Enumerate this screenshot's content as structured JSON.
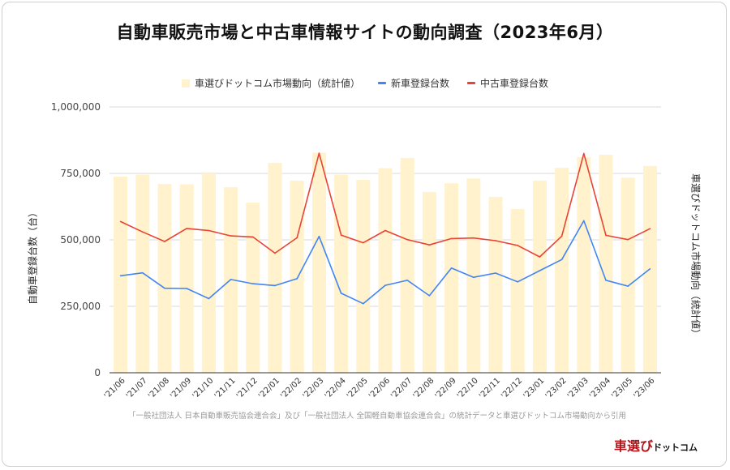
{
  "chart_data": {
    "type": "bar+line",
    "title": "自動車販売市場と中古車情報サイトの動向調査（2023年6月）",
    "ylabel": "自動車登録台数（台）",
    "y2label": "車選びドットコム市場動向（統計値）",
    "ylim": [
      0,
      1000000
    ],
    "yticks": [
      "0",
      "250,000",
      "500,000",
      "750,000",
      "1,000,000"
    ],
    "grid": true,
    "legend_position": "top",
    "categories": [
      "'21/06",
      "'21/07",
      "'21/08",
      "'21/09",
      "'21/10",
      "'21/11",
      "'21/12",
      "'22/01",
      "'22/02",
      "'22/03",
      "'22/04",
      "'22/05",
      "'22/06",
      "'22/07",
      "'22/08",
      "'22/09",
      "'22/10",
      "'22/11",
      "'22/12",
      "'23/01",
      "'23/02",
      "'23/03",
      "'23/04",
      "'23/05",
      "'23/06"
    ],
    "series": [
      {
        "name": "車選びドットコム市場動向（統計値）",
        "type": "bar",
        "axis": "right",
        "color": "#fff2cc",
        "values": [
          738000,
          745000,
          710000,
          709000,
          750000,
          698000,
          640000,
          790000,
          723000,
          828000,
          745000,
          726000,
          770000,
          808000,
          680000,
          713000,
          731000,
          662000,
          616000,
          723000,
          771000,
          811000,
          820000,
          734000,
          778000
        ]
      },
      {
        "name": "新車登録台数",
        "type": "line",
        "color": "#4285f4",
        "values": [
          365000,
          376000,
          318000,
          317000,
          279000,
          351000,
          335000,
          328000,
          354000,
          513000,
          299000,
          260000,
          329000,
          348000,
          290000,
          394000,
          359000,
          375000,
          342000,
          384000,
          426000,
          572000,
          348000,
          326000,
          391000
        ]
      },
      {
        "name": "中古車登録台数",
        "type": "line",
        "color": "#ea4335",
        "values": [
          569000,
          530000,
          494000,
          543000,
          535000,
          515000,
          511000,
          450000,
          508000,
          826000,
          518000,
          489000,
          535000,
          501000,
          481000,
          505000,
          507000,
          497000,
          479000,
          436000,
          514000,
          825000,
          517000,
          501000,
          542000
        ]
      }
    ]
  },
  "source_note": "「一般社団法人 日本自動車販売協会連合会」及び「一般社団法人 全国軽自動車協会連合会」の統計データと車選びドットコム市場動向から引用",
  "logo": {
    "main": "車選び",
    "sub": "ドットコム"
  }
}
